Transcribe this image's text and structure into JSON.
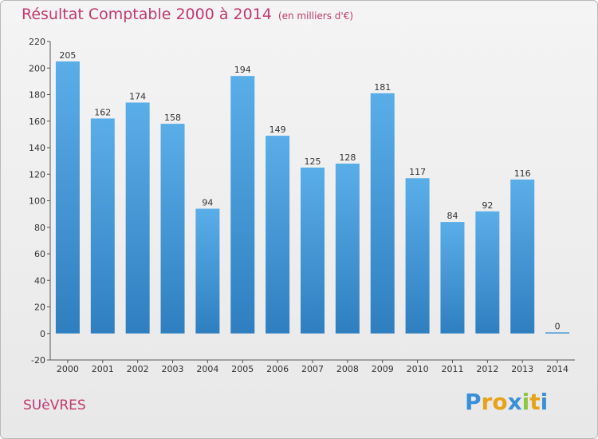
{
  "header": {
    "title": "Résultat Comptable 2000 à 2014",
    "subtitle": "(en milliers d'€)"
  },
  "footer": {
    "town": "SUèVRES",
    "brand_letters": [
      "P",
      "r",
      "o",
      "x",
      "i",
      "t",
      "i"
    ],
    "brand_colors": [
      "#3a8fd8",
      "#e8a21a",
      "#e8a21a",
      "#3a8fd8",
      "#8dc63f",
      "#e8a21a",
      "#3a8fd8"
    ]
  },
  "colors": {
    "bar_top": "#5aaee8",
    "bar_bottom": "#2f7fc0",
    "title": "#c13a6e"
  },
  "chart_data": {
    "type": "bar",
    "title": "Résultat Comptable 2000 à 2014",
    "xlabel": "",
    "ylabel": "",
    "categories": [
      "2000",
      "2001",
      "2002",
      "2003",
      "2004",
      "2005",
      "2006",
      "2007",
      "2008",
      "2009",
      "2010",
      "2011",
      "2012",
      "2013",
      "2014"
    ],
    "values": [
      205,
      162,
      174,
      158,
      94,
      194,
      149,
      125,
      128,
      181,
      117,
      84,
      92,
      116,
      0
    ],
    "ylim": [
      -20,
      220
    ],
    "yticks": [
      -20,
      0,
      20,
      40,
      60,
      80,
      100,
      120,
      140,
      160,
      180,
      200,
      220
    ],
    "grid": false
  }
}
